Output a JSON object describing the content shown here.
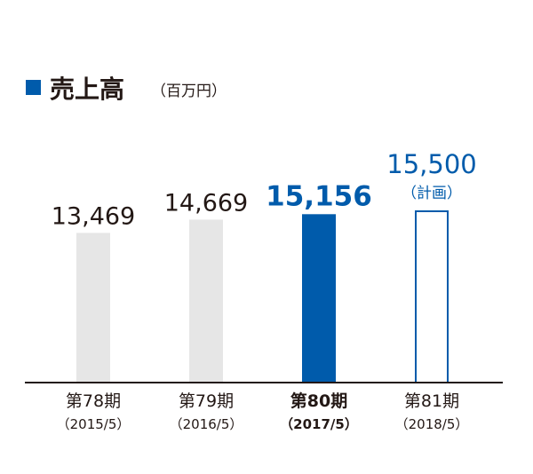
{
  "chart_data": {
    "type": "bar",
    "title": "売上高",
    "unit": "（百万円）",
    "categories": [
      "第78期",
      "第79期",
      "第80期",
      "第81期"
    ],
    "periods": [
      "（2015/5）",
      "（2016/5）",
      "（2017/5）",
      "（2018/5）"
    ],
    "values": [
      13469,
      14669,
      15156,
      15500
    ],
    "value_labels": [
      "13,469",
      "14,669",
      "15,156",
      "15,500"
    ],
    "notes": [
      "",
      "",
      "",
      "（計画）"
    ],
    "styles": [
      "past",
      "past",
      "current",
      "plan"
    ],
    "ylim": [
      0,
      15500
    ],
    "grid": false
  },
  "colors": {
    "accent": "#005bab",
    "past_bar": "#e6e6e6",
    "text": "#231815",
    "axis": "#231815"
  }
}
